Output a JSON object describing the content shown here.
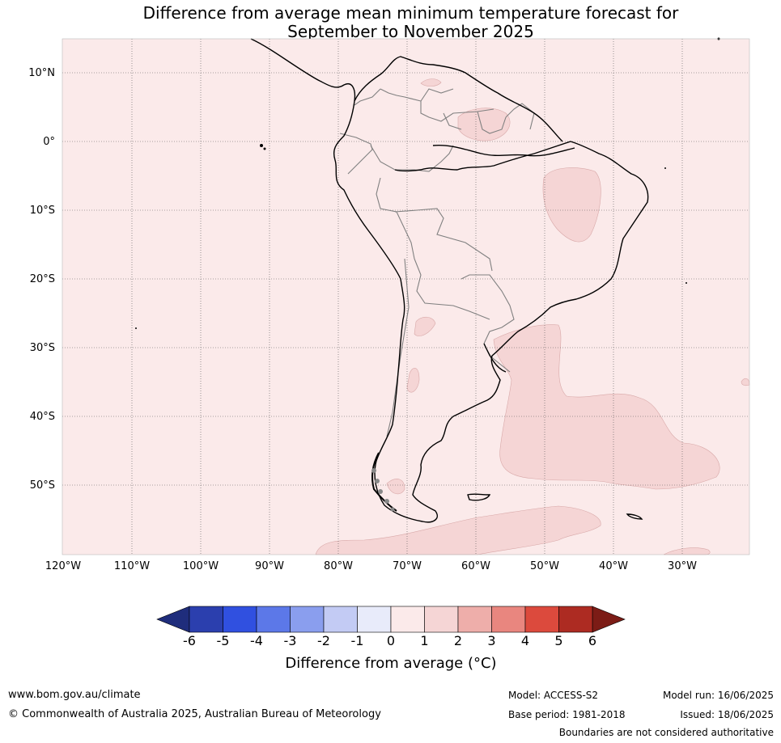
{
  "title_line1": "Difference from average mean minimum temperature forecast for",
  "title_line2": "September to November 2025",
  "lat_labels": [
    "10°N",
    "0°",
    "10°S",
    "20°S",
    "30°S",
    "40°S",
    "50°S"
  ],
  "lon_labels": [
    "120°W",
    "110°W",
    "100°W",
    "90°W",
    "80°W",
    "70°W",
    "60°W",
    "50°W",
    "40°W",
    "30°W"
  ],
  "colorbar": {
    "ticks": [
      "-6",
      "-5",
      "-4",
      "-3",
      "-2",
      "-1",
      "0",
      "1",
      "2",
      "3",
      "4",
      "5",
      "6"
    ],
    "colors": [
      "#2b3fae",
      "#3050e0",
      "#5c78e8",
      "#8a9eee",
      "#c3cbf4",
      "#e8ebfa",
      "#fbeaea",
      "#f5d5d5",
      "#eeaeaa",
      "#e9867f",
      "#dc4a3d",
      "#ad2b22"
    ],
    "under_color": "#1f2d7c",
    "over_color": "#7c1c16",
    "label": "Difference from average (",
    "unit_symbol": "°C",
    "label_close": ")"
  },
  "footer": {
    "website": "www.bom.gov.au/climate",
    "copyright": "© Commonwealth of Australia 2025, Australian Bureau of Meteorology",
    "model": "Model: ACCESS-S2",
    "base_period": "Base period: 1981-2018",
    "model_run": "Model run: 16/06/2025",
    "issued": "Issued: 18/06/2025",
    "disclaimer": "Boundaries are not considered authoritative"
  },
  "colors": {
    "background_anomaly": "#fbeaea",
    "anomaly_1_2": "#f5d5d5",
    "coast": "#000000",
    "border": "#808080"
  }
}
